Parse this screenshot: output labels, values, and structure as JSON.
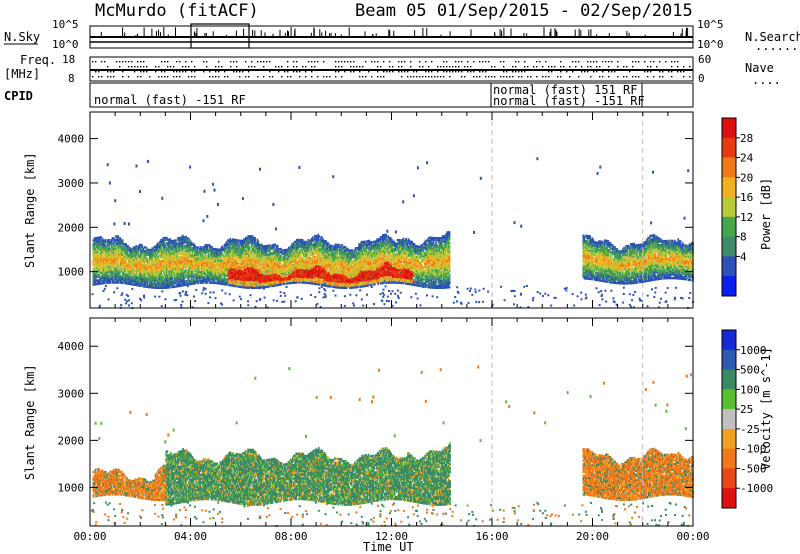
{
  "header": {
    "station": "McMurdo (fitACF)",
    "beam_info": "Beam 05  01/Sep/2015 - 02/Sep/2015"
  },
  "strip_labels": {
    "nsky": "N.Sky",
    "nsearch": "N.Search",
    "nsearch_dots": "........",
    "freq": "Freq.",
    "freq_unit": "[MHz]",
    "nave": "Nave",
    "nave_dots": "....",
    "cpid": "CPID",
    "nsky_top": "10^5",
    "nsky_bottom": "10^0",
    "nsearch_top": "10^5",
    "nsearch_bottom": "10^0",
    "freq_top": "18",
    "freq_bottom": "8",
    "nave_top": "60",
    "nave_bottom": "0"
  },
  "cpid": {
    "left": "normal (fast) -151 RF",
    "right_1": "normal (fast) 151 RF",
    "right_2": "normal (fast) -151 RF"
  },
  "chart_data": [
    {
      "type": "heatmap",
      "title": "",
      "xlabel": "",
      "ylabel": "Slant Range [km]",
      "x_ticks": [
        "00:00",
        "04:00",
        "08:00",
        "12:00",
        "16:00",
        "20:00",
        "00:00"
      ],
      "x_range_hours": [
        0,
        24
      ],
      "y_ticks": [
        1000,
        2000,
        3000,
        4000
      ],
      "ylim": [
        180,
        4600
      ],
      "colorbar": {
        "label": "Power [dB]",
        "ticks": [
          "4",
          "8",
          "12",
          "16",
          "20",
          "24",
          "28"
        ],
        "colors": [
          "#0b1ef0",
          "#2a52b8",
          "#3f8a6a",
          "#44a84a",
          "#b8c93a",
          "#f0b020",
          "#f07a18",
          "#e83a10",
          "#e01010"
        ]
      },
      "regions": [
        {
          "t_start": 0.1,
          "t_end": 14.3,
          "r_low": 600,
          "r_high": 1900,
          "level": "mixed"
        },
        {
          "t_start": 5.5,
          "t_end": 12.8,
          "r_low": 650,
          "r_high": 1300,
          "level": "high"
        },
        {
          "t_start": 19.6,
          "t_end": 24.0,
          "r_low": 700,
          "r_high": 1900,
          "level": "mixed"
        }
      ],
      "markers_hours": [
        16.0,
        22.0
      ]
    },
    {
      "type": "heatmap",
      "title": "",
      "xlabel": "Time UT",
      "ylabel": "Slant Range [km]",
      "x_ticks": [
        "00:00",
        "04:00",
        "08:00",
        "12:00",
        "16:00",
        "20:00",
        "00:00"
      ],
      "x_range_hours": [
        0,
        24
      ],
      "y_ticks": [
        1000,
        2000,
        3000,
        4000
      ],
      "ylim": [
        180,
        4600
      ],
      "colorbar": {
        "label": "Velocity [m s^-1]",
        "ticks": [
          "1000",
          "500",
          "100",
          "25",
          "-25",
          "-100",
          "-500",
          "-1000"
        ],
        "colors": [
          "#1428d8",
          "#2a5ab0",
          "#3c8a64",
          "#58c030",
          "#c0c0c0",
          "#f0a020",
          "#f07818",
          "#e84818",
          "#e01010"
        ]
      },
      "regions": [
        {
          "t_start": 0.1,
          "t_end": 3.0,
          "r_low": 700,
          "r_high": 1500,
          "level": "negative"
        },
        {
          "t_start": 3.0,
          "t_end": 14.3,
          "r_low": 600,
          "r_high": 1900,
          "level": "positive"
        },
        {
          "t_start": 19.6,
          "t_end": 24.0,
          "r_low": 700,
          "r_high": 1900,
          "level": "negative"
        }
      ],
      "markers_hours": [
        16.0,
        22.0
      ]
    }
  ]
}
